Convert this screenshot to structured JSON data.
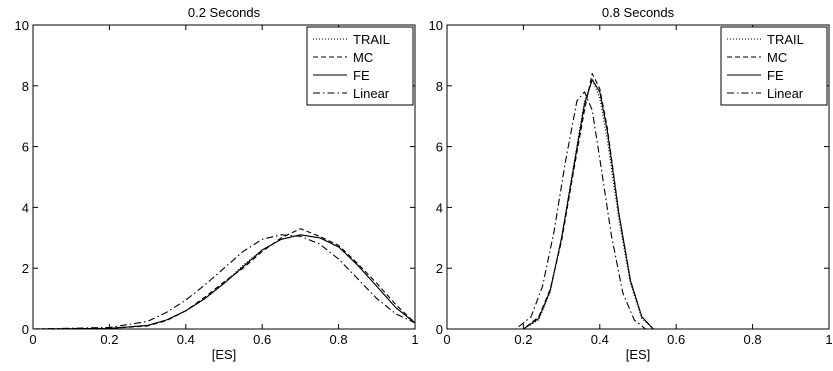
{
  "chart_data": [
    {
      "type": "line",
      "title": "0.2 Seconds",
      "xlabel": "[ES]",
      "ylabel": "",
      "xlim": [
        0,
        1
      ],
      "ylim": [
        0,
        10
      ],
      "xticks": [
        "0",
        "0.2",
        "0.4",
        "0.6",
        "0.8",
        "1"
      ],
      "yticks": [
        "0",
        "2",
        "4",
        "6",
        "8",
        "10"
      ],
      "grid": false,
      "legend": "top-right",
      "series": [
        {
          "name": "TRAIL",
          "style": "dotted",
          "x": [
            0,
            0.2,
            0.3,
            0.35,
            0.4,
            0.45,
            0.5,
            0.55,
            0.6,
            0.65,
            0.7,
            0.75,
            0.8,
            0.85,
            0.9,
            0.95,
            1.0
          ],
          "y": [
            0,
            0.02,
            0.12,
            0.3,
            0.6,
            1.0,
            1.5,
            2.1,
            2.6,
            2.95,
            3.1,
            3.0,
            2.7,
            2.1,
            1.4,
            0.7,
            0.2
          ]
        },
        {
          "name": "MC",
          "style": "dashed",
          "x": [
            0,
            0.2,
            0.3,
            0.35,
            0.4,
            0.45,
            0.5,
            0.55,
            0.6,
            0.65,
            0.7,
            0.75,
            0.8,
            0.85,
            0.9,
            0.95,
            1.0
          ],
          "y": [
            0,
            0.02,
            0.1,
            0.28,
            0.6,
            1.05,
            1.55,
            2.0,
            2.55,
            3.0,
            3.3,
            3.05,
            2.75,
            2.15,
            1.5,
            0.8,
            0.2
          ]
        },
        {
          "name": "FE",
          "style": "solid",
          "x": [
            0,
            0.2,
            0.3,
            0.35,
            0.4,
            0.45,
            0.5,
            0.55,
            0.6,
            0.65,
            0.7,
            0.75,
            0.8,
            0.85,
            0.9,
            0.95,
            1.0
          ],
          "y": [
            0,
            0.02,
            0.12,
            0.3,
            0.6,
            1.0,
            1.5,
            2.05,
            2.6,
            2.95,
            3.1,
            3.0,
            2.7,
            2.1,
            1.4,
            0.7,
            0.2
          ]
        },
        {
          "name": "Linear",
          "style": "dashdot",
          "x": [
            0,
            0.2,
            0.3,
            0.35,
            0.4,
            0.45,
            0.5,
            0.55,
            0.6,
            0.65,
            0.7,
            0.75,
            0.8,
            0.85,
            0.9,
            0.95,
            1.0
          ],
          "y": [
            0,
            0.05,
            0.25,
            0.55,
            0.95,
            1.45,
            2.0,
            2.55,
            2.95,
            3.1,
            3.05,
            2.8,
            2.3,
            1.65,
            1.0,
            0.5,
            0.2
          ]
        }
      ]
    },
    {
      "type": "line",
      "title": "0.8 Seconds",
      "xlabel": "[ES]",
      "ylabel": "",
      "xlim": [
        0,
        1
      ],
      "ylim": [
        0,
        10
      ],
      "xticks": [
        "0",
        "0.2",
        "0.4",
        "0.6",
        "0.8",
        "1"
      ],
      "yticks": [
        "0",
        "2",
        "4",
        "6",
        "8",
        "10"
      ],
      "grid": false,
      "legend": "top-right",
      "series": [
        {
          "name": "TRAIL",
          "style": "dotted",
          "x": [
            0,
            0.2,
            0.24,
            0.27,
            0.3,
            0.33,
            0.36,
            0.38,
            0.4,
            0.42,
            0.45,
            0.48,
            0.51,
            0.54,
            1.0
          ],
          "y": [
            0,
            0,
            0.3,
            1.2,
            3.0,
            5.3,
            7.5,
            8.2,
            7.6,
            6.2,
            3.6,
            1.5,
            0.35,
            0,
            0
          ]
        },
        {
          "name": "MC",
          "style": "dashed",
          "x": [
            0,
            0.2,
            0.24,
            0.27,
            0.3,
            0.33,
            0.36,
            0.38,
            0.4,
            0.42,
            0.45,
            0.48,
            0.51,
            0.54,
            1.0
          ],
          "y": [
            0,
            0,
            0.4,
            1.3,
            2.9,
            5.1,
            7.2,
            8.4,
            7.9,
            6.6,
            3.8,
            1.6,
            0.4,
            0,
            0
          ]
        },
        {
          "name": "FE",
          "style": "solid",
          "x": [
            0,
            0.2,
            0.24,
            0.27,
            0.3,
            0.33,
            0.36,
            0.38,
            0.4,
            0.42,
            0.45,
            0.48,
            0.51,
            0.54,
            1.0
          ],
          "y": [
            0,
            0,
            0.35,
            1.25,
            3.0,
            5.2,
            7.4,
            8.2,
            7.8,
            6.5,
            3.8,
            1.6,
            0.4,
            0,
            0
          ]
        },
        {
          "name": "Linear",
          "style": "dashdot",
          "x": [
            0,
            0.18,
            0.22,
            0.25,
            0.28,
            0.31,
            0.34,
            0.36,
            0.38,
            0.4,
            0.43,
            0.46,
            0.49,
            0.52,
            1.0
          ],
          "y": [
            0,
            0,
            0.4,
            1.4,
            3.2,
            5.5,
            7.5,
            7.8,
            7.2,
            5.6,
            3.1,
            1.2,
            0.3,
            0,
            0
          ]
        }
      ]
    }
  ]
}
